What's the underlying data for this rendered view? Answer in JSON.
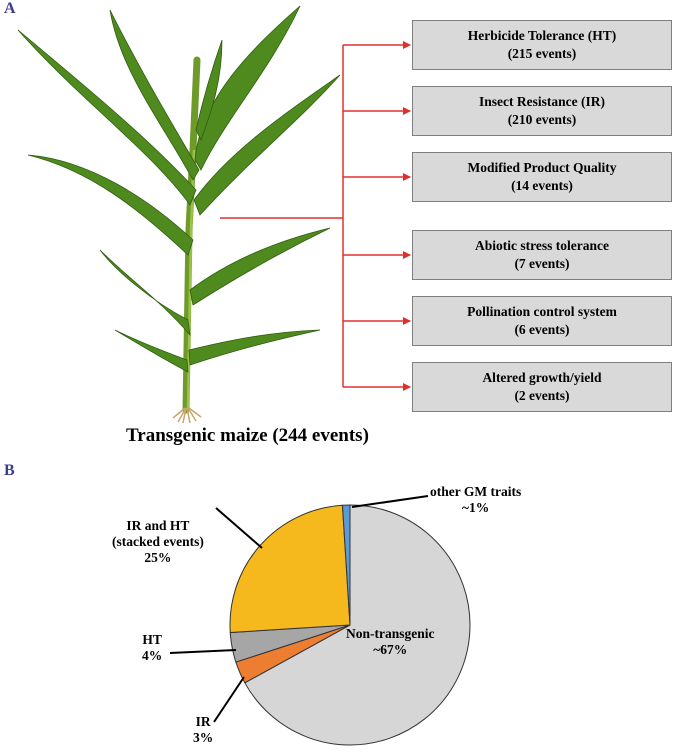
{
  "panels": {
    "a": "A",
    "b": "B"
  },
  "plant": {
    "caption": "Transgenic maize (244 events)",
    "icon": "maize-plant-icon"
  },
  "traits": [
    {
      "name": "Herbicide  Tolerance (HT)",
      "events": "(215 events)"
    },
    {
      "name": "Insect Resistance (IR)",
      "events": "(210 events)"
    },
    {
      "name": "Modified Product Quality",
      "events": "(14 events)"
    },
    {
      "name": "Abiotic stress tolerance",
      "events": "(7 events)"
    },
    {
      "name": "Pollination control system",
      "events": "(6 events)"
    },
    {
      "name": "Altered growth/yield",
      "events": "(2 events)"
    }
  ],
  "pie": {
    "labels": {
      "other": [
        "other GM traits",
        "~1%"
      ],
      "stacked": [
        "IR and  HT",
        "(stacked events)",
        "25%"
      ],
      "ht": [
        "HT",
        "4%"
      ],
      "ir": [
        "IR",
        "3%"
      ],
      "non": [
        "Non-transgenic",
        "~67%"
      ]
    }
  },
  "colors": {
    "arrow": "#e0302b",
    "box_fill": "#d9d9d9",
    "non_transgenic": "#d6d6d6",
    "stacked": "#f6b91d",
    "ht": "#a6a6a6",
    "ir": "#ed7d31",
    "other": "#5b9bd5"
  },
  "chart_data": {
    "type": "pie",
    "categories": [
      "Non-transgenic",
      "IR",
      "HT",
      "IR and HT (stacked events)",
      "other GM traits"
    ],
    "values": [
      67,
      3,
      4,
      25,
      1
    ]
  }
}
